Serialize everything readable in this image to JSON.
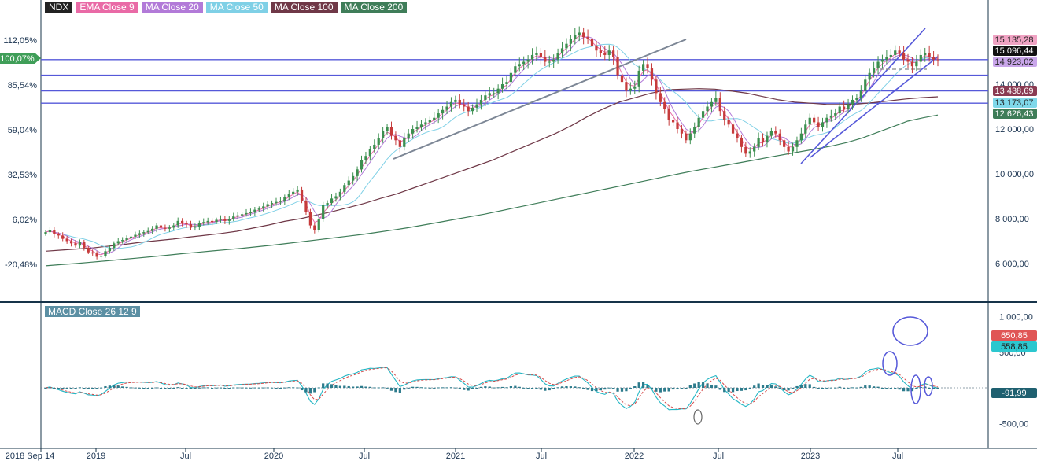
{
  "legend": [
    {
      "label": "NDX",
      "color": "#222222"
    },
    {
      "label": "EMA Close 9",
      "color": "#e96aa6"
    },
    {
      "label": "MA Close 20",
      "color": "#b27ad8"
    },
    {
      "label": "MA Close 50",
      "color": "#7fd0e6"
    },
    {
      "label": "MA Close 100",
      "color": "#6f3847"
    },
    {
      "label": "MA Close 200",
      "color": "#3f7d59"
    }
  ],
  "macd_label": "MACD Close 26 12 9",
  "colors": {
    "channel": "#5558d9",
    "trend": "#7d8796",
    "up": "#3c8f4f",
    "down": "#c63b3b",
    "macd": "#24b6c4",
    "signal": "#d64949",
    "hist": "#2d7b8c",
    "axis": "#17344a"
  },
  "chart_data": [
    {
      "type": "candlestick",
      "title": "NDX",
      "x_ticks": [
        "2018 Sep 14",
        "2019",
        "Jul",
        "2020",
        "Jul",
        "2021",
        "Jul",
        "2022",
        "Jul",
        "2023",
        "Jul"
      ],
      "price_ticks": [
        "6 000,00",
        "8 000,00",
        "10 000,00",
        "12 000,00",
        "14 000,00"
      ],
      "percent_ticks": [
        "112,05%",
        "85,54%",
        "59,04%",
        "32,53%",
        "6,02%",
        "-20,48%"
      ],
      "price_labels": [
        {
          "text": "15 135,28",
          "bg": "#f0a3c3",
          "fg": "#222222"
        },
        {
          "text": "15 096,44",
          "bg": "#111111",
          "fg": "#ffffff"
        },
        {
          "text": "14 923,02",
          "bg": "#c9a6ea",
          "fg": "#222222"
        },
        {
          "text": "13 438,69",
          "bg": "#8a3b52",
          "fg": "#ffffff"
        },
        {
          "text": "13 173,07",
          "bg": "#7fd8ea",
          "fg": "#222222"
        },
        {
          "text": "12 626,43",
          "bg": "#3e7d58",
          "fg": "#ffffff"
        }
      ],
      "percent_label": "100,07%",
      "close": [
        7400,
        7500,
        7300,
        7250,
        7100,
        7000,
        6900,
        6800,
        6950,
        6700,
        6500,
        6450,
        6300,
        6350,
        6550,
        6700,
        6900,
        7000,
        7050,
        7150,
        7200,
        7280,
        7350,
        7400,
        7450,
        7550,
        7700,
        7600,
        7550,
        7600,
        7700,
        7900,
        7800,
        7750,
        7600,
        7650,
        7800,
        7850,
        7900,
        7850,
        7950,
        8000,
        7900,
        8000,
        8100,
        8150,
        8200,
        8250,
        8300,
        8400,
        8450,
        8550,
        8650,
        8700,
        8750,
        8800,
        8950,
        9100,
        9200,
        9300,
        8800,
        8300,
        7700,
        7500,
        8000,
        8600,
        8700,
        8900,
        9000,
        9200,
        9500,
        9700,
        9900,
        10200,
        10600,
        10800,
        11100,
        11300,
        11600,
        11900,
        12100,
        11700,
        11500,
        11200,
        11600,
        11800,
        12000,
        12100,
        12200,
        12300,
        12400,
        12500,
        12700,
        12850,
        13000,
        13200,
        13300,
        13100,
        13000,
        12800,
        12950,
        13100,
        13300,
        13500,
        13600,
        13600,
        13800,
        14000,
        14100,
        14500,
        14800,
        14900,
        15000,
        15100,
        15300,
        15400,
        15200,
        15000,
        15000,
        15100,
        15400,
        15600,
        15800,
        16000,
        16200,
        16300,
        16100,
        16000,
        15700,
        15500,
        15400,
        15300,
        15500,
        15200,
        14400,
        14100,
        13700,
        13800,
        13900,
        14600,
        14900,
        14700,
        14200,
        13600,
        13200,
        12900,
        12400,
        12300,
        12000,
        11800,
        11500,
        11800,
        12100,
        12500,
        12800,
        13000,
        13200,
        13400,
        12800,
        12400,
        12200,
        11800,
        11600,
        11200,
        10900,
        11000,
        11200,
        11600,
        11400,
        11700,
        11900,
        11800,
        11500,
        11200,
        11000,
        11200,
        11500,
        11800,
        12200,
        12500,
        12300,
        12100,
        12300,
        12500,
        12600,
        12700,
        13000,
        12900,
        13100,
        13300,
        13400,
        13700,
        14200,
        14500,
        14700,
        15000,
        15100,
        15200,
        15300,
        15500,
        15400,
        15100,
        15000,
        14800,
        15000,
        15300,
        15400,
        15200,
        15100,
        15090
      ],
      "ma100": [
        6550,
        6600,
        6650,
        6700,
        6780,
        6860,
        6950,
        7020,
        7090,
        7180,
        7260,
        7340,
        7440,
        7580,
        7720,
        7880,
        8000,
        8160,
        8320,
        8500,
        8680,
        8900,
        9100,
        9350,
        9600,
        9850,
        10100,
        10350,
        10600,
        10900,
        11200,
        11500,
        11800,
        12150,
        12550,
        12900,
        13200,
        13400,
        13600,
        13750,
        13780,
        13800,
        13780,
        13700,
        13600,
        13450,
        13300,
        13200,
        13150,
        13100,
        13090,
        13120,
        13180,
        13260,
        13340,
        13400,
        13439
      ],
      "ma200": [
        5900,
        5950,
        6000,
        6060,
        6120,
        6180,
        6240,
        6300,
        6370,
        6440,
        6500,
        6560,
        6620,
        6680,
        6750,
        6820,
        6900,
        6980,
        7060,
        7140,
        7220,
        7300,
        7400,
        7500,
        7600,
        7720,
        7840,
        7960,
        8080,
        8200,
        8340,
        8480,
        8620,
        8760,
        8900,
        9040,
        9180,
        9320,
        9460,
        9600,
        9740,
        9880,
        10020,
        10150,
        10270,
        10390,
        10510,
        10630,
        10760,
        10880,
        11000,
        11120,
        11250,
        11400,
        11600,
        11850,
        12100,
        12350,
        12500,
        12626
      ],
      "horizontal_levels": [
        15096,
        14400,
        13700,
        13150
      ],
      "unit": "%"
    },
    {
      "type": "macd",
      "title": "MACD Close 26 12 9",
      "y_ticks": [
        "1 000,00",
        "500,00",
        "0",
        "-500,00"
      ],
      "value_labels": [
        {
          "text": "650,85",
          "bg": "#e05555",
          "fg": "#ffffff"
        },
        {
          "text": "558,85",
          "bg": "#2cc7cf",
          "fg": "#222222"
        },
        {
          "text": "-91,99",
          "bg": "#1f6070",
          "fg": "#ffffff"
        }
      ]
    }
  ]
}
